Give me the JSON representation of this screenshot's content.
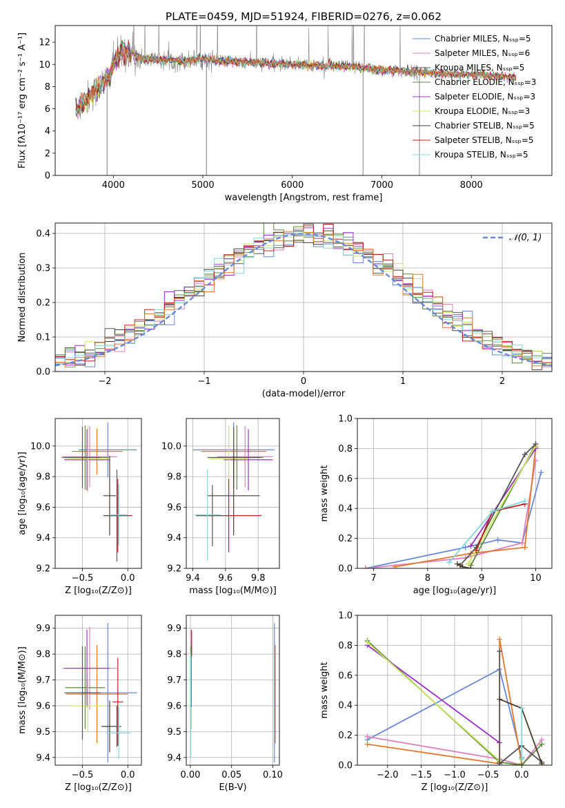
{
  "colors": {
    "blue": "#6788d9",
    "pink": "#e07fbd",
    "darkgray": "#555555",
    "olive": "#5a8a3a",
    "purple": "#9b30c8",
    "lime": "#c8e85a",
    "darkbrown": "#4b3a2a",
    "red": "#c21d1d",
    "cyan": "#7dd8d8",
    "orange": "#e3772a",
    "gray": "#808080",
    "grid": "#b0b0b0"
  },
  "chart_data": [
    {
      "id": "spectrum",
      "type": "line",
      "title": "PLATE=0459, MJD=51924, FIBERID=0276, z=0.062",
      "xlabel": "wavelength [Angstrom, rest frame]",
      "ylabel": "Flux [fλ10⁻¹⁷ erg cm⁻² s⁻¹ A⁻¹]",
      "xlim": [
        3350,
        8900
      ],
      "ylim": [
        0,
        13.5
      ],
      "xticks": [
        4000,
        5000,
        6000,
        7000,
        8000
      ],
      "yticks": [
        0,
        2,
        4,
        6,
        8,
        10,
        12
      ],
      "grid": false,
      "legend_position": "right",
      "legend": [
        {
          "label": "Chabrier MILES, Nₛₛₚ=5",
          "color": "#6788d9"
        },
        {
          "label": "Salpeter MILES, Nₛₛₚ=6",
          "color": "#e07fbd"
        },
        {
          "label": "Kroupa MILES, Nₛₛₚ=5",
          "color": "#555555"
        },
        {
          "label": "Chabrier ELODIE, Nₛₛₚ=3",
          "color": "#5a8a3a"
        },
        {
          "label": "Salpeter ELODIE, Nₛₛₚ=3",
          "color": "#9b30c8"
        },
        {
          "label": "Kroupa ELODIE, Nₛₛₚ=3",
          "color": "#c8e85a"
        },
        {
          "label": "Chabrier STELIB, Nₛₛₚ=5",
          "color": "#4b3a2a"
        },
        {
          "label": "Salpeter STELIB, Nₛₛₚ=5",
          "color": "#c21d1d"
        },
        {
          "label": "Kroupa STELIB, Nₛₛₚ=5",
          "color": "#7dd8d8"
        }
      ],
      "continuum": {
        "x": [
          3580,
          3650,
          3750,
          3850,
          3950,
          4000,
          4100,
          4200,
          4300,
          4500,
          4800,
          5000,
          5200,
          5500,
          5800,
          6000,
          6300,
          6600,
          6800,
          7000,
          7200,
          7400,
          7600,
          7800,
          8000,
          8200,
          8400,
          8500
        ],
        "y": [
          5.8,
          6.5,
          7.2,
          8.0,
          9.0,
          10.0,
          11.3,
          11.0,
          10.5,
          10.4,
          10.3,
          10.5,
          10.3,
          10.2,
          10.1,
          10.0,
          9.9,
          9.8,
          9.7,
          9.5,
          9.4,
          9.3,
          9.2,
          9.1,
          9.1,
          9.0,
          8.9,
          8.85
        ]
      },
      "data_x_range": [
        3580,
        8500
      ],
      "observed_x_range": [
        3580,
        7420
      ],
      "absorption_spikes": [
        {
          "x": 3930,
          "y": 0
        },
        {
          "x": 5040,
          "y": 0
        },
        {
          "x": 6790,
          "y": 0
        },
        {
          "x": 7420,
          "y": 0
        }
      ]
    },
    {
      "id": "residuals",
      "type": "histogram",
      "xlabel": "(data-model)/error",
      "ylabel": "Normed distribution",
      "xlim": [
        -2.5,
        2.5
      ],
      "ylim": [
        0,
        0.43
      ],
      "xticks": [
        -2,
        -1,
        0,
        1,
        2
      ],
      "yticks": [
        0.0,
        0.1,
        0.2,
        0.3,
        0.4
      ],
      "grid": true,
      "bin_width": 0.1,
      "legend": [
        {
          "label": "𝒩(0, 1)",
          "color": "#6788d9",
          "style": "dashed"
        }
      ],
      "legend_position": "top-right",
      "series_colors": [
        "#6788d9",
        "#e07fbd",
        "#555555",
        "#5a8a3a",
        "#9b30c8",
        "#c8e85a",
        "#4b3a2a",
        "#c21d1d",
        "#7dd8d8",
        "#e3772a"
      ]
    },
    {
      "id": "age_vs_Z",
      "type": "errorbar",
      "xlabel": "Z [log₁₀(Z/Z⊙)]",
      "ylabel": "age  [log₁₀(age/yr)]",
      "xlim": [
        -0.8,
        0.15
      ],
      "ylim": [
        9.2,
        10.18
      ],
      "xticks": [
        -0.5,
        0.0
      ],
      "yticks": [
        9.2,
        9.4,
        9.6,
        9.8,
        10.0
      ],
      "grid": true,
      "points": [
        {
          "x": -0.22,
          "y": 9.975,
          "xerr": 0.32,
          "yerr": 0.18,
          "color": "#6788d9"
        },
        {
          "x": -0.34,
          "y": 9.965,
          "xerr": 0.28,
          "yerr": 0.15,
          "color": "#e3772a"
        },
        {
          "x": -0.42,
          "y": 9.93,
          "xerr": 0.3,
          "yerr": 0.2,
          "color": "#e07fbd"
        },
        {
          "x": -0.47,
          "y": 9.925,
          "xerr": 0.26,
          "yerr": 0.21,
          "color": "#5a8a3a"
        },
        {
          "x": -0.45,
          "y": 9.91,
          "xerr": 0.25,
          "yerr": 0.2,
          "color": "#9b30c8"
        },
        {
          "x": -0.44,
          "y": 9.915,
          "xerr": 0.22,
          "yerr": 0.22,
          "color": "#c8e85a"
        },
        {
          "x": -0.5,
          "y": 9.925,
          "xerr": 0.2,
          "yerr": 0.2,
          "color": "#555555"
        },
        {
          "x": -0.2,
          "y": 9.675,
          "xerr": 0.07,
          "yerr": 0.26,
          "color": "#4b3a2a"
        },
        {
          "x": -0.11,
          "y": 9.545,
          "xerr": 0.16,
          "yerr": 0.24,
          "color": "#c21d1d"
        },
        {
          "x": -0.12,
          "y": 9.545,
          "xerr": 0.14,
          "yerr": 0.3,
          "color": "#555555"
        },
        {
          "x": -0.1,
          "y": 9.55,
          "xerr": 0.1,
          "yerr": 0.2,
          "color": "#7dd8d8"
        }
      ]
    },
    {
      "id": "age_vs_mass",
      "type": "errorbar",
      "xlabel": "mass [log₁₀(M/M⊙)]",
      "ylabel": "",
      "xlim": [
        9.36,
        9.93
      ],
      "ylim": [
        9.2,
        10.18
      ],
      "xticks": [
        9.4,
        9.6,
        9.8
      ],
      "yticks": [
        9.2,
        9.4,
        9.6,
        9.8,
        10.0
      ],
      "grid": true,
      "points": [
        {
          "x": 9.65,
          "y": 9.975,
          "xerr": 0.25,
          "yerr": 0.18,
          "color": "#6788d9"
        },
        {
          "x": 9.65,
          "y": 9.965,
          "xerr": 0.2,
          "yerr": 0.15,
          "color": "#e3772a"
        },
        {
          "x": 9.72,
          "y": 9.93,
          "xerr": 0.17,
          "yerr": 0.2,
          "color": "#e07fbd"
        },
        {
          "x": 9.67,
          "y": 9.925,
          "xerr": 0.16,
          "yerr": 0.21,
          "color": "#5a8a3a"
        },
        {
          "x": 9.74,
          "y": 9.91,
          "xerr": 0.15,
          "yerr": 0.2,
          "color": "#9b30c8"
        },
        {
          "x": 9.62,
          "y": 9.915,
          "xerr": 0.12,
          "yerr": 0.22,
          "color": "#c8e85a"
        },
        {
          "x": 9.65,
          "y": 9.925,
          "xerr": 0.16,
          "yerr": 0.2,
          "color": "#555555"
        },
        {
          "x": 9.65,
          "y": 9.675,
          "xerr": 0.16,
          "yerr": 0.26,
          "color": "#4b3a2a"
        },
        {
          "x": 9.62,
          "y": 9.545,
          "xerr": 0.2,
          "yerr": 0.24,
          "color": "#c21d1d"
        },
        {
          "x": 9.52,
          "y": 9.545,
          "xerr": 0.1,
          "yerr": 0.2,
          "color": "#555555"
        },
        {
          "x": 9.49,
          "y": 9.55,
          "xerr": 0.08,
          "yerr": 0.3,
          "color": "#7dd8d8"
        }
      ]
    },
    {
      "id": "mass_weight_vs_age",
      "type": "line",
      "xlabel": "age  [log₁₀(age/yr)]",
      "ylabel": "mass weight",
      "xlim": [
        6.7,
        10.3
      ],
      "ylim": [
        0,
        1.0
      ],
      "xticks": [
        7,
        8,
        9,
        10
      ],
      "yticks": [
        0.0,
        0.2,
        0.4,
        0.6,
        0.8,
        1.0
      ],
      "grid": true,
      "series": [
        {
          "color": "#6788d9",
          "x": [
            6.85,
            8.7,
            9.3,
            9.75,
            10.1
          ],
          "y": [
            0.0,
            0.14,
            0.19,
            0.17,
            0.64
          ]
        },
        {
          "color": "#e07fbd",
          "x": [
            6.85,
            8.7,
            9.75,
            10.0
          ],
          "y": [
            0.0,
            0.07,
            0.17,
            0.72
          ]
        },
        {
          "color": "#e3772a",
          "x": [
            7.4,
            8.8,
            9.8,
            10.0
          ],
          "y": [
            0.01,
            0.1,
            0.14,
            0.81
          ]
        },
        {
          "color": "#5a8a3a",
          "x": [
            8.8,
            10.0
          ],
          "y": [
            0.02,
            0.83
          ]
        },
        {
          "color": "#9b30c8",
          "x": [
            8.8,
            10.0
          ],
          "y": [
            0.15,
            0.8
          ]
        },
        {
          "color": "#c8e85a",
          "x": [
            8.75,
            10.0
          ],
          "y": [
            0.03,
            0.82
          ]
        },
        {
          "color": "#555555",
          "x": [
            8.6,
            8.9,
            9.8,
            10.0
          ],
          "y": [
            0.02,
            0.14,
            0.76,
            0.83
          ]
        },
        {
          "color": "#c21d1d",
          "x": [
            8.9,
            9.2,
            9.8
          ],
          "y": [
            0.12,
            0.38,
            0.43
          ]
        },
        {
          "color": "#4b3a2a",
          "x": [
            8.55,
            8.65,
            8.8
          ],
          "y": [
            0.03,
            0.01,
            0.0
          ]
        },
        {
          "color": "#7dd8d8",
          "x": [
            8.4,
            9.2,
            9.8
          ],
          "y": [
            0.04,
            0.38,
            0.45
          ]
        }
      ]
    },
    {
      "id": "mass_vs_Z",
      "type": "errorbar",
      "xlabel": "Z [log₁₀(Z/Z⊙)]",
      "ylabel": "mass [log₁₀(M/M⊙)]",
      "xlim": [
        -0.8,
        0.15
      ],
      "ylim": [
        9.37,
        9.95
      ],
      "xticks": [
        -0.5,
        0.0
      ],
      "yticks": [
        9.4,
        9.5,
        9.6,
        9.7,
        9.8,
        9.9
      ],
      "grid": true,
      "points": [
        {
          "x": -0.22,
          "y": 9.65,
          "xerr": 0.32,
          "yerr": 0.27,
          "color": "#6788d9"
        },
        {
          "x": -0.34,
          "y": 9.645,
          "xerr": 0.34,
          "yerr": 0.19,
          "color": "#e3772a"
        },
        {
          "x": -0.42,
          "y": 9.745,
          "xerr": 0.3,
          "yerr": 0.16,
          "color": "#e07fbd"
        },
        {
          "x": -0.47,
          "y": 9.67,
          "xerr": 0.22,
          "yerr": 0.16,
          "color": "#5a8a3a"
        },
        {
          "x": -0.45,
          "y": 9.745,
          "xerr": 0.25,
          "yerr": 0.15,
          "color": "#9b30c8"
        },
        {
          "x": -0.44,
          "y": 9.6,
          "xerr": 0.2,
          "yerr": 0.1,
          "color": "#c8e85a"
        },
        {
          "x": -0.5,
          "y": 9.65,
          "xerr": 0.2,
          "yerr": 0.18,
          "color": "#555555"
        },
        {
          "x": -0.2,
          "y": 9.52,
          "xerr": 0.09,
          "yerr": 0.1,
          "color": "#4b3a2a"
        },
        {
          "x": -0.11,
          "y": 9.615,
          "xerr": 0.06,
          "yerr": 0.17,
          "color": "#c21d1d"
        },
        {
          "x": -0.12,
          "y": 9.52,
          "xerr": 0.05,
          "yerr": 0.08,
          "color": "#555555"
        },
        {
          "x": -0.1,
          "y": 9.495,
          "xerr": 0.13,
          "yerr": 0.1,
          "color": "#7dd8d8"
        }
      ]
    },
    {
      "id": "mass_vs_ebv",
      "type": "errorbar",
      "xlabel": "E(B-V)",
      "ylabel": "",
      "xlim": [
        -0.005,
        0.108
      ],
      "ylim": [
        9.37,
        9.95
      ],
      "xticks": [
        0.0,
        0.05,
        0.1
      ],
      "xtick_labels": [
        "0.00",
        "0.05",
        "0.10"
      ],
      "yticks": [
        9.4,
        9.5,
        9.6,
        9.7,
        9.8,
        9.9
      ],
      "grid": true,
      "points": [
        {
          "x": 0.102,
          "y": 9.65,
          "xerr": 0,
          "yerr": 0.27,
          "color": "#6788d9"
        },
        {
          "x": 0.103,
          "y": 9.645,
          "xerr": 0,
          "yerr": 0.19,
          "color": "#e3772a"
        },
        {
          "x": 0.0012,
          "y": 9.745,
          "xerr": 0,
          "yerr": 0.15,
          "color": "#9b30c8"
        },
        {
          "x": 0.0008,
          "y": 9.67,
          "xerr": 0,
          "yerr": 0.16,
          "color": "#5a8a3a"
        },
        {
          "x": 0.0005,
          "y": 9.6,
          "xerr": 0,
          "yerr": 0.2,
          "color": "#7dd8d8"
        },
        {
          "x": 0.0015,
          "y": 9.84,
          "xerr": 0,
          "yerr": 0.05,
          "color": "#c21d1d"
        }
      ]
    },
    {
      "id": "mass_weight_vs_Z",
      "type": "line",
      "xlabel": "Z [log₁₀(Z/Z⊙)]",
      "ylabel": "mass weight",
      "xlim": [
        -2.45,
        0.45
      ],
      "ylim": [
        0,
        1.0
      ],
      "xticks": [
        -2.0,
        -1.5,
        -1.0,
        -0.5,
        0.0
      ],
      "xtick_labels": [
        "−2.0",
        "−1.5",
        "−1.0",
        "−0.5",
        "0.0"
      ],
      "yticks": [
        0.0,
        0.2,
        0.4,
        0.6,
        0.8,
        1.0
      ],
      "grid": true,
      "series": [
        {
          "color": "#6788d9",
          "x": [
            -2.3,
            -0.33,
            0.0,
            0.0
          ],
          "y": [
            0.17,
            0.64,
            0.05,
            0.0
          ]
        },
        {
          "color": "#e07fbd",
          "x": [
            -2.3,
            -0.33,
            0.0,
            0.3
          ],
          "y": [
            0.19,
            0.04,
            0.0,
            0.17
          ]
        },
        {
          "color": "#e3772a",
          "x": [
            -2.3,
            -0.33,
            -0.33,
            0.0,
            0.0
          ],
          "y": [
            0.14,
            0.01,
            0.84,
            0.01,
            0.0
          ]
        },
        {
          "color": "#5a8a3a",
          "x": [
            -2.3,
            -0.33,
            0.0,
            0.3
          ],
          "y": [
            0.83,
            0.02,
            0.0,
            0.14
          ]
        },
        {
          "color": "#9b30c8",
          "x": [
            -2.3,
            -0.33
          ],
          "y": [
            0.8,
            0.15
          ]
        },
        {
          "color": "#c8e85a",
          "x": [
            -2.3,
            -0.33
          ],
          "y": [
            0.82,
            0.03
          ]
        },
        {
          "color": "#555555",
          "x": [
            -0.33,
            -0.33,
            0.0,
            0.3
          ],
          "y": [
            0.76,
            0.01,
            0.13,
            0.02
          ]
        },
        {
          "color": "#4b3a2a",
          "x": [
            -0.33,
            0.0,
            0.3
          ],
          "y": [
            0.44,
            0.38,
            0.01
          ]
        },
        {
          "color": "#7dd8d8",
          "x": [
            0.0,
            0.0
          ],
          "y": [
            0.38,
            0.04
          ]
        }
      ]
    }
  ]
}
